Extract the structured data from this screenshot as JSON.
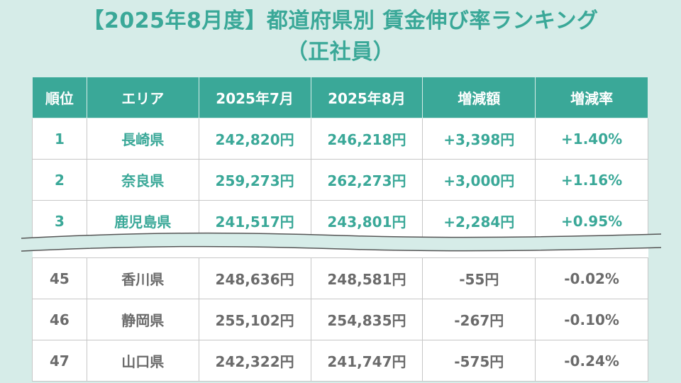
{
  "title": {
    "line1": "【2025年8月度】都道府県別 賃金伸び率ランキング",
    "line2": "（正社員）"
  },
  "table": {
    "headers": [
      "順位",
      "エリア",
      "2025年7月",
      "2025年8月",
      "増減額",
      "増減率"
    ],
    "top_rows": [
      [
        "1",
        "長崎県",
        "242,820円",
        "246,218円",
        "+3,398円",
        "+1.40%"
      ],
      [
        "2",
        "奈良県",
        "259,273円",
        "262,273円",
        "+3,000円",
        "+1.16%"
      ],
      [
        "3",
        "鹿児島県",
        "241,517円",
        "243,801円",
        "+2,284円",
        "+0.95%"
      ]
    ],
    "bottom_rows": [
      [
        "45",
        "香川県",
        "248,636円",
        "248,581円",
        "-55円",
        "-0.02%"
      ],
      [
        "46",
        "静岡県",
        "255,102円",
        "254,835円",
        "-267円",
        "-0.10%"
      ],
      [
        "47",
        "山口県",
        "242,322円",
        "241,747円",
        "-575円",
        "-0.24%"
      ]
    ]
  },
  "colors": {
    "accent": "#3aa898",
    "background": "#d6ece8",
    "muted_text": "#6b6b6b"
  }
}
